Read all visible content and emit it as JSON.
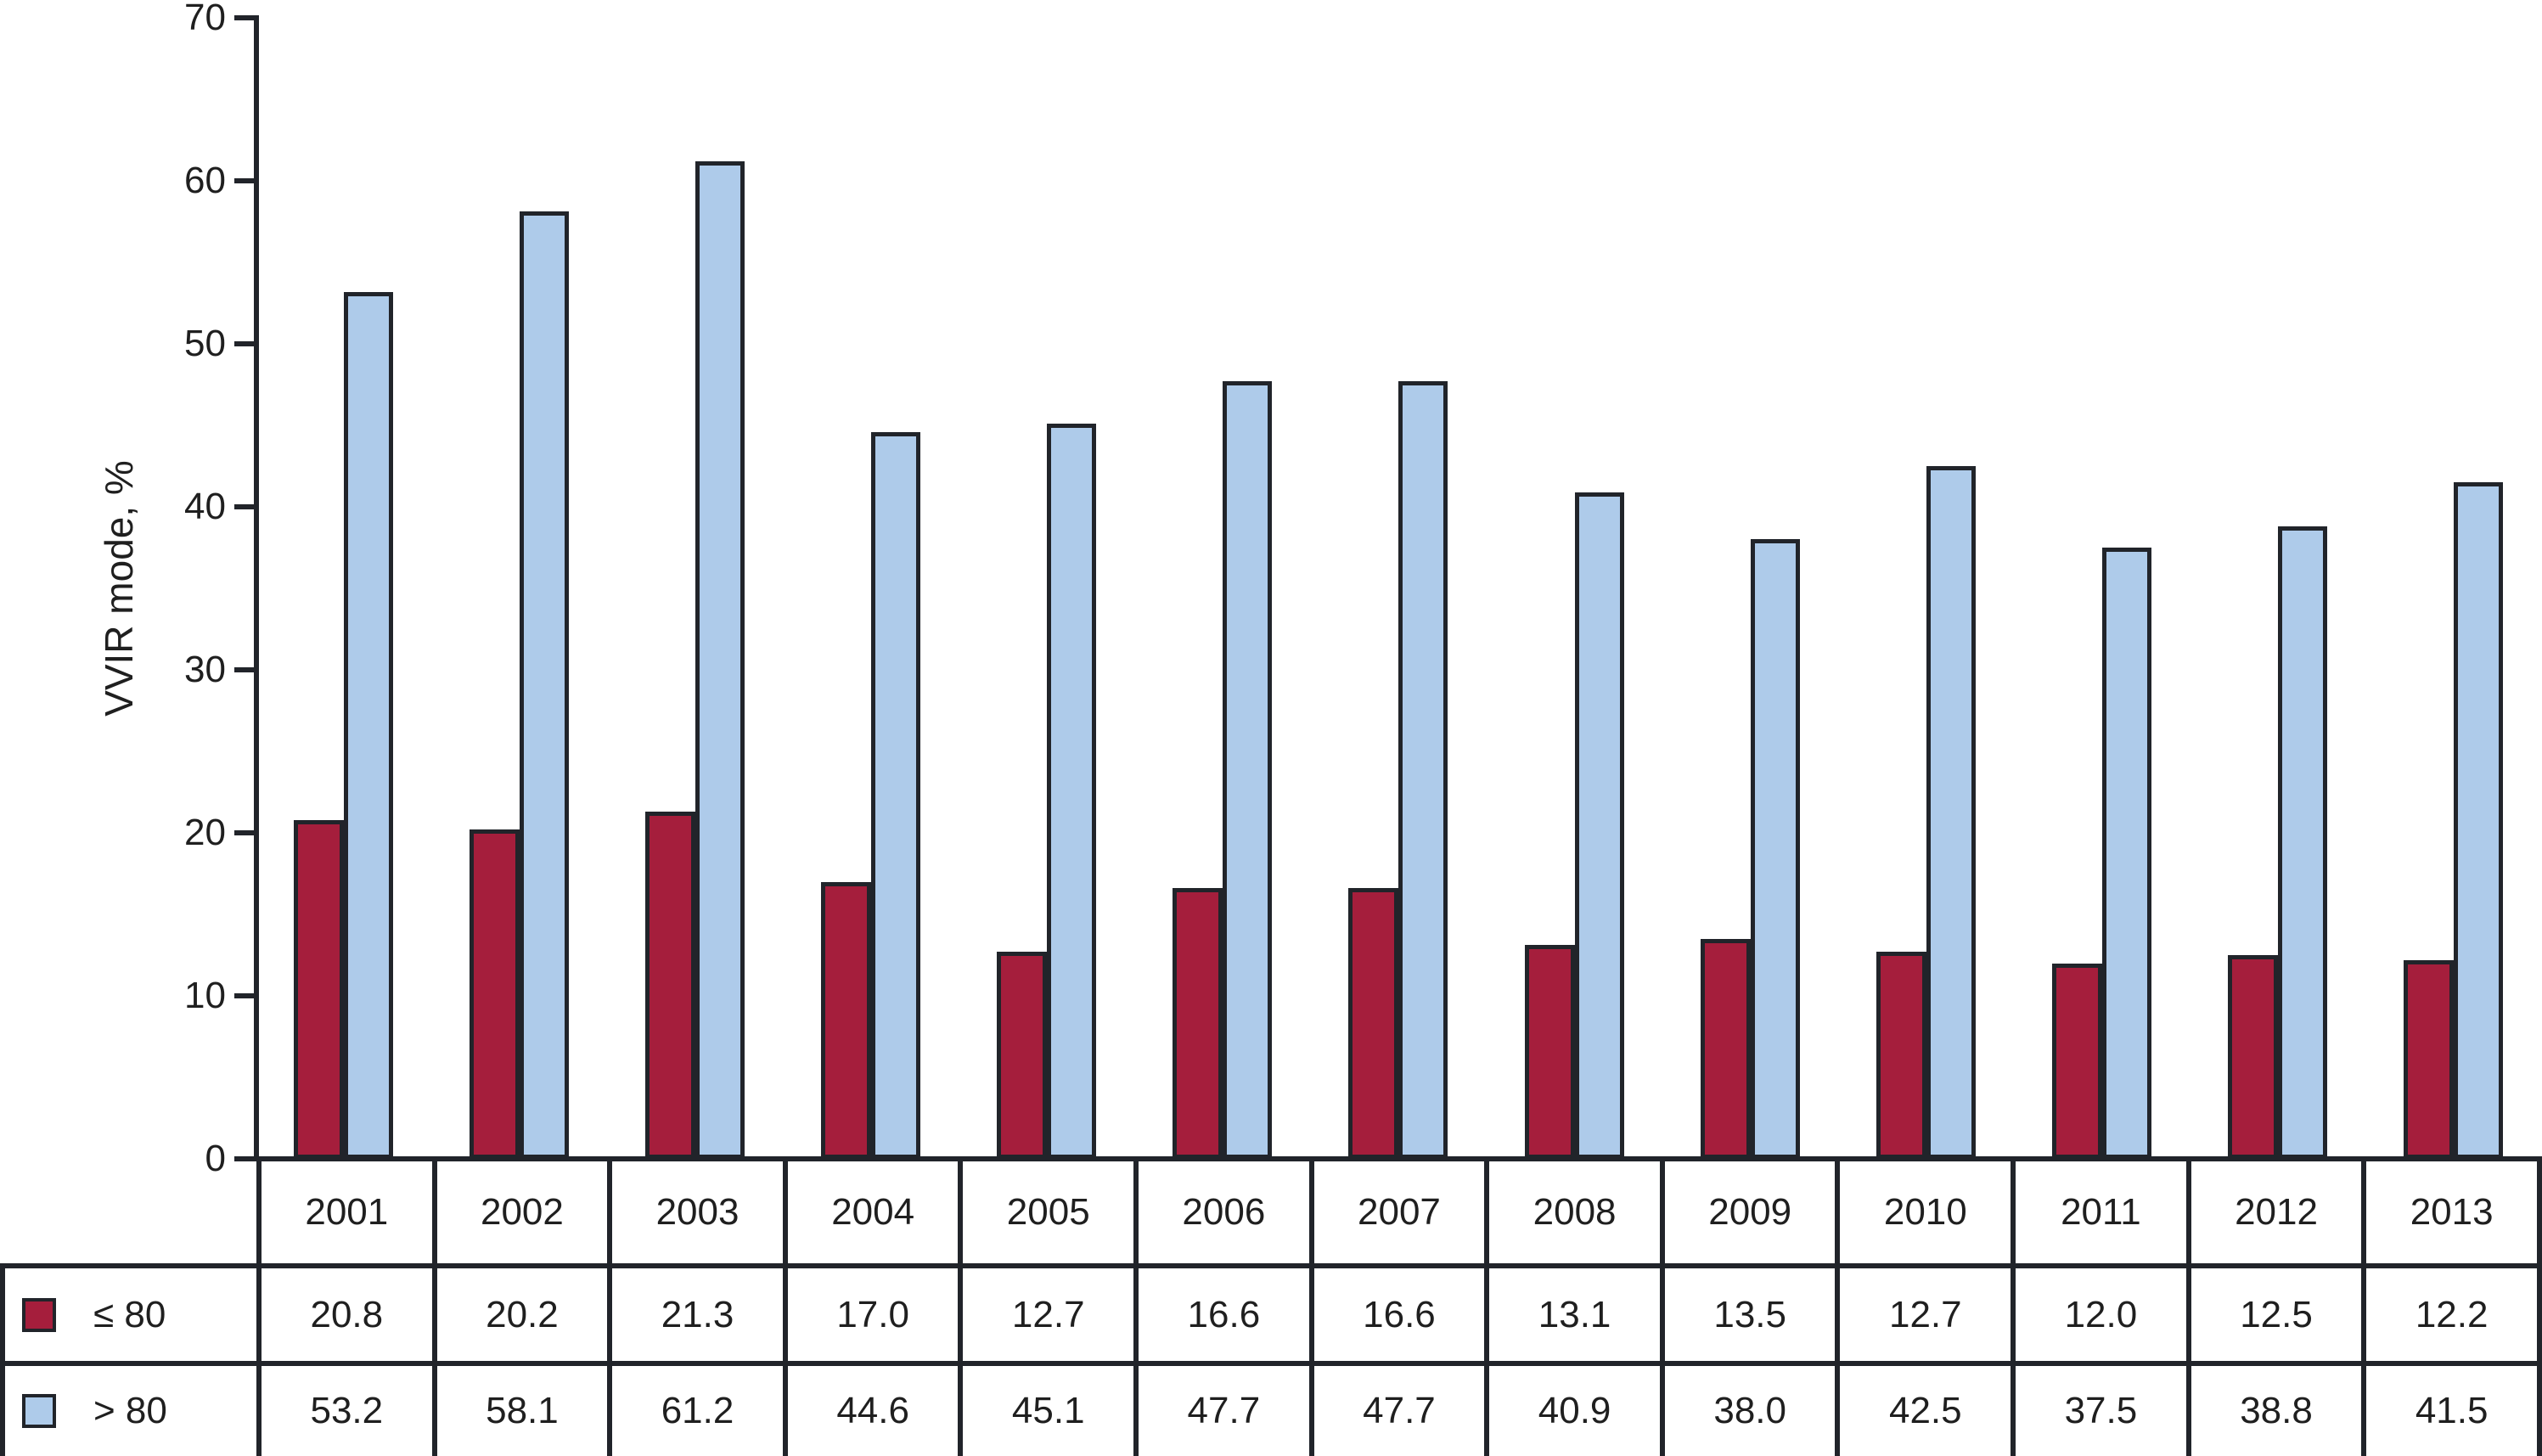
{
  "chart_data": {
    "type": "bar",
    "ylabel": "VVIR mode, %",
    "ylim": [
      0,
      70
    ],
    "yticks": [
      0,
      10,
      20,
      30,
      40,
      50,
      60,
      70
    ],
    "grid": false,
    "legend_position": "table-left",
    "categories": [
      "2001",
      "2002",
      "2003",
      "2004",
      "2005",
      "2006",
      "2007",
      "2008",
      "2009",
      "2010",
      "2011",
      "2012",
      "2013"
    ],
    "series": [
      {
        "name": "≤ 80",
        "color": "#A51E3C",
        "values": [
          20.8,
          20.2,
          21.3,
          17.0,
          12.7,
          16.6,
          16.6,
          13.1,
          13.5,
          12.7,
          12.0,
          12.5,
          12.2
        ]
      },
      {
        "name": "> 80",
        "color": "#AECBEA",
        "values": [
          53.2,
          58.1,
          61.2,
          44.6,
          45.1,
          47.7,
          47.7,
          40.9,
          38.0,
          42.5,
          37.5,
          38.8,
          41.5
        ]
      }
    ],
    "colors": {
      "line": "#21242a",
      "background": "#ffffff",
      "text": "#1f1f1f"
    }
  }
}
